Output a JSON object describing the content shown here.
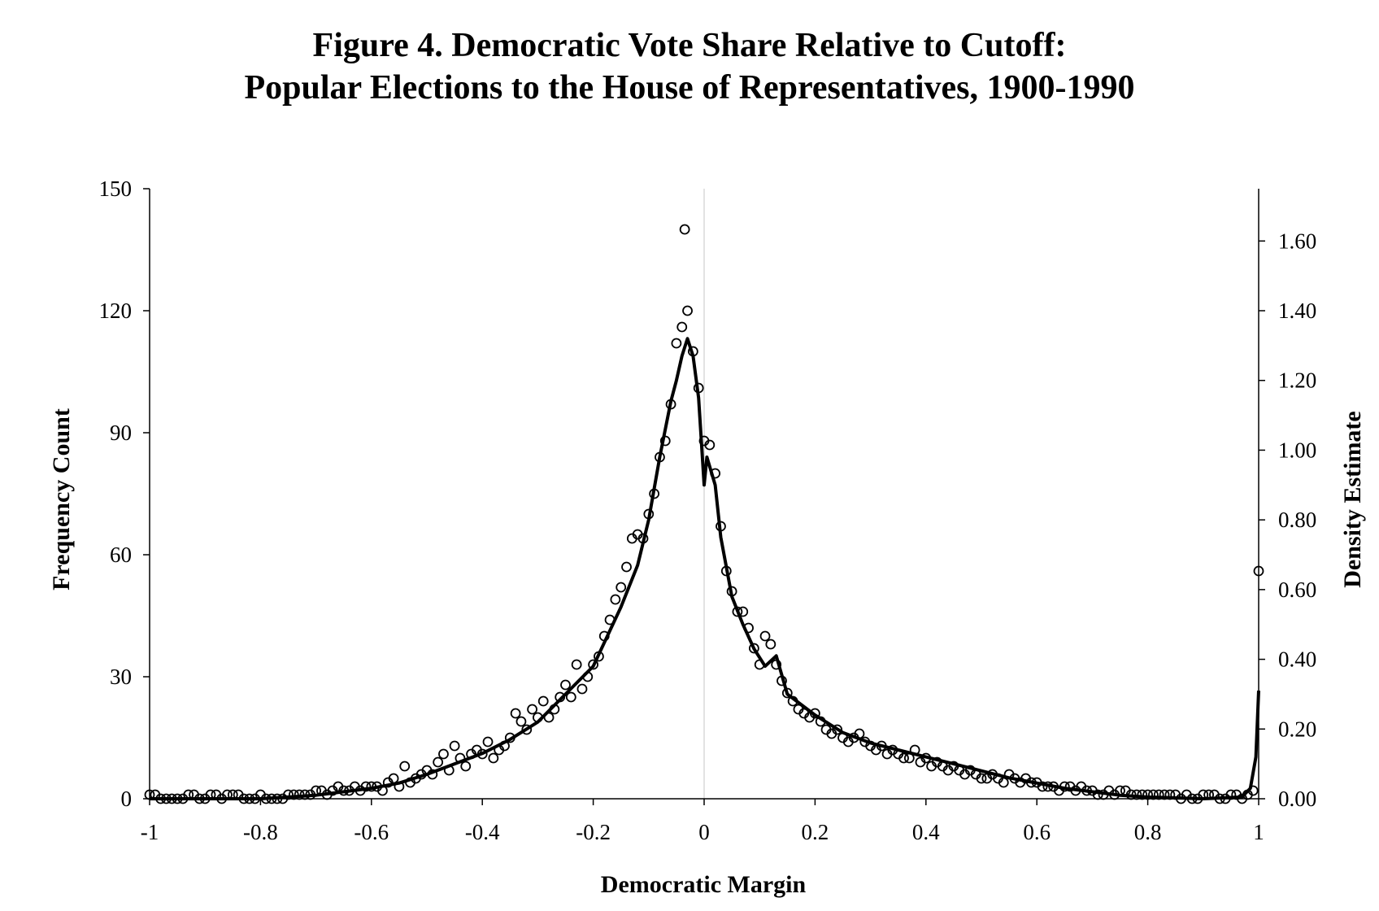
{
  "chart_data": {
    "type": "scatter",
    "title_line1": "Figure 4. Democratic Vote Share Relative to Cutoff:",
    "title_line2": "Popular Elections to the House of Representatives, 1900-1990",
    "xlabel": "Democratic Margin",
    "ylabel_left": "Frequency Count",
    "ylabel_right": "Density Estimate",
    "xlim": [
      -1,
      1
    ],
    "ylim_left": [
      0,
      150
    ],
    "ylim_right": [
      0,
      1.75
    ],
    "xticks": [
      -1,
      -0.8,
      -0.6,
      -0.4,
      -0.2,
      0,
      0.2,
      0.4,
      0.6,
      0.8,
      1
    ],
    "xtick_labels": [
      "-1",
      "-0.8",
      "-0.6",
      "-0.4",
      "-0.2",
      "0",
      "0.2",
      "0.4",
      "0.6",
      "0.8",
      "1"
    ],
    "yticks_left": [
      0,
      30,
      60,
      90,
      120,
      150
    ],
    "ytick_labels_left": [
      "0",
      "30",
      "60",
      "90",
      "120",
      "150"
    ],
    "yticks_right": [
      0,
      0.2,
      0.4,
      0.6,
      0.8,
      1.0,
      1.2,
      1.4,
      1.6
    ],
    "ytick_labels_right": [
      "0.00",
      "0.20",
      "0.40",
      "0.60",
      "0.80",
      "1.00",
      "1.20",
      "1.40",
      "1.60"
    ],
    "series": [
      {
        "marker": "open-circle",
        "axis": "left",
        "points": [
          [
            -1.0,
            1
          ],
          [
            -0.99,
            1
          ],
          [
            -0.98,
            0
          ],
          [
            -0.97,
            0
          ],
          [
            -0.96,
            0
          ],
          [
            -0.95,
            0
          ],
          [
            -0.94,
            0
          ],
          [
            -0.93,
            1
          ],
          [
            -0.92,
            1
          ],
          [
            -0.91,
            0
          ],
          [
            -0.9,
            0
          ],
          [
            -0.89,
            1
          ],
          [
            -0.88,
            1
          ],
          [
            -0.87,
            0
          ],
          [
            -0.86,
            1
          ],
          [
            -0.85,
            1
          ],
          [
            -0.84,
            1
          ],
          [
            -0.83,
            0
          ],
          [
            -0.82,
            0
          ],
          [
            -0.81,
            0
          ],
          [
            -0.8,
            1
          ],
          [
            -0.79,
            0
          ],
          [
            -0.78,
            0
          ],
          [
            -0.77,
            0
          ],
          [
            -0.76,
            0
          ],
          [
            -0.75,
            1
          ],
          [
            -0.74,
            1
          ],
          [
            -0.73,
            1
          ],
          [
            -0.72,
            1
          ],
          [
            -0.71,
            1
          ],
          [
            -0.7,
            2
          ],
          [
            -0.69,
            2
          ],
          [
            -0.68,
            1
          ],
          [
            -0.67,
            2
          ],
          [
            -0.66,
            3
          ],
          [
            -0.65,
            2
          ],
          [
            -0.64,
            2
          ],
          [
            -0.63,
            3
          ],
          [
            -0.62,
            2
          ],
          [
            -0.61,
            3
          ],
          [
            -0.6,
            3
          ],
          [
            -0.59,
            3
          ],
          [
            -0.58,
            2
          ],
          [
            -0.57,
            4
          ],
          [
            -0.56,
            5
          ],
          [
            -0.55,
            3
          ],
          [
            -0.54,
            8
          ],
          [
            -0.53,
            4
          ],
          [
            -0.52,
            5
          ],
          [
            -0.51,
            6
          ],
          [
            -0.5,
            7
          ],
          [
            -0.49,
            6
          ],
          [
            -0.48,
            9
          ],
          [
            -0.47,
            11
          ],
          [
            -0.46,
            7
          ],
          [
            -0.45,
            13
          ],
          [
            -0.44,
            10
          ],
          [
            -0.43,
            8
          ],
          [
            -0.42,
            11
          ],
          [
            -0.41,
            12
          ],
          [
            -0.4,
            11
          ],
          [
            -0.39,
            14
          ],
          [
            -0.38,
            10
          ],
          [
            -0.37,
            12
          ],
          [
            -0.36,
            13
          ],
          [
            -0.35,
            15
          ],
          [
            -0.34,
            21
          ],
          [
            -0.33,
            19
          ],
          [
            -0.32,
            17
          ],
          [
            -0.31,
            22
          ],
          [
            -0.3,
            20
          ],
          [
            -0.29,
            24
          ],
          [
            -0.28,
            20
          ],
          [
            -0.27,
            22
          ],
          [
            -0.26,
            25
          ],
          [
            -0.25,
            28
          ],
          [
            -0.24,
            25
          ],
          [
            -0.23,
            33
          ],
          [
            -0.22,
            27
          ],
          [
            -0.21,
            30
          ],
          [
            -0.2,
            33
          ],
          [
            -0.19,
            35
          ],
          [
            -0.18,
            40
          ],
          [
            -0.17,
            44
          ],
          [
            -0.16,
            49
          ],
          [
            -0.15,
            52
          ],
          [
            -0.14,
            57
          ],
          [
            -0.13,
            64
          ],
          [
            -0.12,
            65
          ],
          [
            -0.11,
            64
          ],
          [
            -0.1,
            70
          ],
          [
            -0.09,
            75
          ],
          [
            -0.08,
            84
          ],
          [
            -0.07,
            88
          ],
          [
            -0.06,
            97
          ],
          [
            -0.05,
            112
          ],
          [
            -0.04,
            116
          ],
          [
            -0.035,
            140
          ],
          [
            -0.03,
            120
          ],
          [
            -0.02,
            110
          ],
          [
            -0.01,
            101
          ],
          [
            0.0,
            88
          ],
          [
            0.01,
            87
          ],
          [
            0.02,
            80
          ],
          [
            0.03,
            67
          ],
          [
            0.04,
            56
          ],
          [
            0.05,
            51
          ],
          [
            0.06,
            46
          ],
          [
            0.07,
            46
          ],
          [
            0.08,
            42
          ],
          [
            0.09,
            37
          ],
          [
            0.1,
            33
          ],
          [
            0.11,
            40
          ],
          [
            0.12,
            38
          ],
          [
            0.13,
            33
          ],
          [
            0.14,
            29
          ],
          [
            0.15,
            26
          ],
          [
            0.16,
            24
          ],
          [
            0.17,
            22
          ],
          [
            0.18,
            21
          ],
          [
            0.19,
            20
          ],
          [
            0.2,
            21
          ],
          [
            0.21,
            19
          ],
          [
            0.22,
            17
          ],
          [
            0.23,
            16
          ],
          [
            0.24,
            17
          ],
          [
            0.25,
            15
          ],
          [
            0.26,
            14
          ],
          [
            0.27,
            15
          ],
          [
            0.28,
            16
          ],
          [
            0.29,
            14
          ],
          [
            0.3,
            13
          ],
          [
            0.31,
            12
          ],
          [
            0.32,
            13
          ],
          [
            0.33,
            11
          ],
          [
            0.34,
            12
          ],
          [
            0.35,
            11
          ],
          [
            0.36,
            10
          ],
          [
            0.37,
            10
          ],
          [
            0.38,
            12
          ],
          [
            0.39,
            9
          ],
          [
            0.4,
            10
          ],
          [
            0.41,
            8
          ],
          [
            0.42,
            9
          ],
          [
            0.43,
            8
          ],
          [
            0.44,
            7
          ],
          [
            0.45,
            8
          ],
          [
            0.46,
            7
          ],
          [
            0.47,
            6
          ],
          [
            0.48,
            7
          ],
          [
            0.49,
            6
          ],
          [
            0.5,
            5
          ],
          [
            0.51,
            5
          ],
          [
            0.52,
            6
          ],
          [
            0.53,
            5
          ],
          [
            0.54,
            4
          ],
          [
            0.55,
            6
          ],
          [
            0.56,
            5
          ],
          [
            0.57,
            4
          ],
          [
            0.58,
            5
          ],
          [
            0.59,
            4
          ],
          [
            0.6,
            4
          ],
          [
            0.61,
            3
          ],
          [
            0.62,
            3
          ],
          [
            0.63,
            3
          ],
          [
            0.64,
            2
          ],
          [
            0.65,
            3
          ],
          [
            0.66,
            3
          ],
          [
            0.67,
            2
          ],
          [
            0.68,
            3
          ],
          [
            0.69,
            2
          ],
          [
            0.7,
            2
          ],
          [
            0.71,
            1
          ],
          [
            0.72,
            1
          ],
          [
            0.73,
            2
          ],
          [
            0.74,
            1
          ],
          [
            0.75,
            2
          ],
          [
            0.76,
            2
          ],
          [
            0.77,
            1
          ],
          [
            0.78,
            1
          ],
          [
            0.79,
            1
          ],
          [
            0.8,
            1
          ],
          [
            0.81,
            1
          ],
          [
            0.82,
            1
          ],
          [
            0.83,
            1
          ],
          [
            0.84,
            1
          ],
          [
            0.85,
            1
          ],
          [
            0.86,
            0
          ],
          [
            0.87,
            1
          ],
          [
            0.88,
            0
          ],
          [
            0.89,
            0
          ],
          [
            0.9,
            1
          ],
          [
            0.91,
            1
          ],
          [
            0.92,
            1
          ],
          [
            0.93,
            0
          ],
          [
            0.94,
            0
          ],
          [
            0.95,
            1
          ],
          [
            0.96,
            1
          ],
          [
            0.97,
            0
          ],
          [
            0.98,
            1
          ],
          [
            0.99,
            2
          ],
          [
            1.0,
            56
          ]
        ]
      },
      {
        "marker": "line",
        "axis": "right",
        "points": [
          [
            -1.0,
            0
          ],
          [
            -0.9,
            0
          ],
          [
            -0.8,
            0
          ],
          [
            -0.7,
            0.01
          ],
          [
            -0.65,
            0.02
          ],
          [
            -0.6,
            0.03
          ],
          [
            -0.55,
            0.045
          ],
          [
            -0.5,
            0.07
          ],
          [
            -0.45,
            0.1
          ],
          [
            -0.4,
            0.13
          ],
          [
            -0.35,
            0.17
          ],
          [
            -0.3,
            0.22
          ],
          [
            -0.25,
            0.3
          ],
          [
            -0.2,
            0.38
          ],
          [
            -0.15,
            0.55
          ],
          [
            -0.12,
            0.67
          ],
          [
            -0.1,
            0.8
          ],
          [
            -0.08,
            0.98
          ],
          [
            -0.06,
            1.14
          ],
          [
            -0.05,
            1.2
          ],
          [
            -0.04,
            1.27
          ],
          [
            -0.03,
            1.32
          ],
          [
            -0.02,
            1.27
          ],
          [
            -0.01,
            1.15
          ],
          [
            0.0,
            0.9
          ],
          [
            0.005,
            0.98
          ],
          [
            0.02,
            0.9
          ],
          [
            0.03,
            0.75
          ],
          [
            0.05,
            0.58
          ],
          [
            0.07,
            0.5
          ],
          [
            0.09,
            0.43
          ],
          [
            0.11,
            0.38
          ],
          [
            0.13,
            0.41
          ],
          [
            0.15,
            0.3
          ],
          [
            0.2,
            0.24
          ],
          [
            0.25,
            0.19
          ],
          [
            0.3,
            0.16
          ],
          [
            0.35,
            0.14
          ],
          [
            0.4,
            0.12
          ],
          [
            0.45,
            0.1
          ],
          [
            0.5,
            0.08
          ],
          [
            0.55,
            0.06
          ],
          [
            0.6,
            0.045
          ],
          [
            0.65,
            0.03
          ],
          [
            0.7,
            0.02
          ],
          [
            0.75,
            0.01
          ],
          [
            0.8,
            0.005
          ],
          [
            0.9,
            0
          ],
          [
            0.97,
            0.005
          ],
          [
            0.985,
            0.03
          ],
          [
            0.995,
            0.12
          ],
          [
            1.0,
            0.31
          ]
        ]
      }
    ]
  }
}
